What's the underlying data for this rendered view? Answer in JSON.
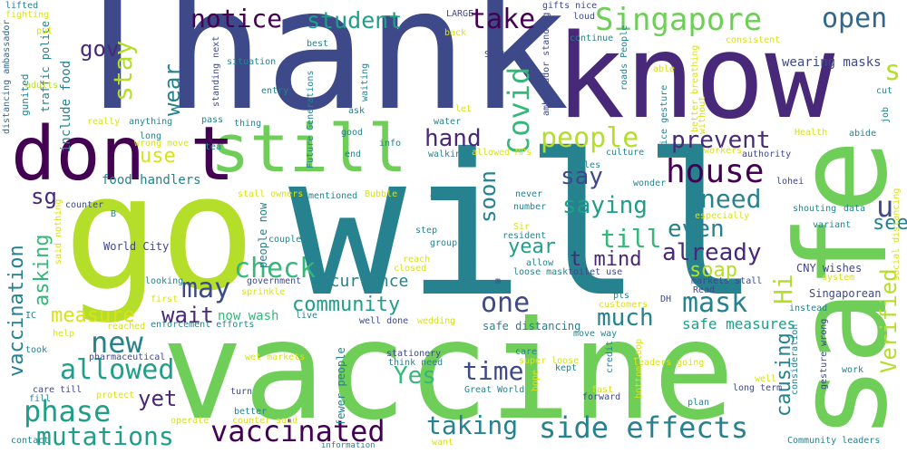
{
  "colors": {
    "navy": "#3e4989",
    "purple": "#440154",
    "deep_purple": "#482878",
    "teal": "#26828e",
    "blue_teal": "#31688e",
    "green_teal": "#1f9e89",
    "green": "#35b779",
    "light_green": "#6ece58",
    "yellow_green": "#b5de2b",
    "yellow": "#d7e219"
  },
  "words": [
    {
      "text": "Thank",
      "color": "navy"
    },
    {
      "text": "know",
      "color": "deep_purple"
    },
    {
      "text": "go",
      "color": "yellow_green"
    },
    {
      "text": "will",
      "color": "teal"
    },
    {
      "text": "vaccine",
      "color": "light_green"
    },
    {
      "text": "safe",
      "color": "light_green"
    },
    {
      "text": "still",
      "color": "light_green"
    },
    {
      "text": "don t",
      "color": "purple"
    },
    {
      "text": "Singapore",
      "color": "light_green"
    },
    {
      "text": "notice",
      "color": "purple"
    },
    {
      "text": "student",
      "color": "green_teal"
    },
    {
      "text": "take",
      "color": "purple"
    },
    {
      "text": "open",
      "color": "blue_teal"
    },
    {
      "text": "gov",
      "color": "deep_purple"
    },
    {
      "text": "stay",
      "color": "yellow_green"
    },
    {
      "text": "wear",
      "color": "teal"
    },
    {
      "text": "wearing masks",
      "color": "navy"
    },
    {
      "text": "s",
      "color": "yellow_green"
    },
    {
      "text": "Covid",
      "color": "green"
    },
    {
      "text": "hand",
      "color": "deep_purple"
    },
    {
      "text": "people",
      "color": "yellow_green"
    },
    {
      "text": "prevent",
      "color": "deep_purple"
    },
    {
      "text": "house",
      "color": "purple"
    },
    {
      "text": "use",
      "color": "yellow"
    },
    {
      "text": "sg",
      "color": "deep_purple"
    },
    {
      "text": "food handlers",
      "color": "teal"
    },
    {
      "text": "recurrence",
      "color": "teal"
    },
    {
      "text": "say",
      "color": "navy"
    },
    {
      "text": "soon",
      "color": "teal"
    },
    {
      "text": "saying",
      "color": "green_teal"
    },
    {
      "text": "need",
      "color": "teal"
    },
    {
      "text": "u",
      "color": "navy"
    },
    {
      "text": "Verified",
      "color": "yellow_green"
    },
    {
      "text": "even",
      "color": "teal"
    },
    {
      "text": "year",
      "color": "green_teal"
    },
    {
      "text": "till",
      "color": "green"
    },
    {
      "text": "t mind",
      "color": "deep_purple"
    },
    {
      "text": "already",
      "color": "deep_purple"
    },
    {
      "text": "see",
      "color": "teal"
    },
    {
      "text": "check",
      "color": "green"
    },
    {
      "text": "soap",
      "color": "yellow_green"
    },
    {
      "text": "Hi",
      "color": "yellow_green"
    },
    {
      "text": "vaccination",
      "color": "teal"
    },
    {
      "text": "asking",
      "color": "green"
    },
    {
      "text": "may",
      "color": "navy"
    },
    {
      "text": "community",
      "color": "green_teal"
    },
    {
      "text": "one",
      "color": "navy"
    },
    {
      "text": "mask",
      "color": "teal"
    },
    {
      "text": "measure",
      "color": "yellow"
    },
    {
      "text": "wait",
      "color": "deep_purple"
    },
    {
      "text": "much",
      "color": "teal"
    },
    {
      "text": "new",
      "color": "teal"
    },
    {
      "text": "now wash",
      "color": "green"
    },
    {
      "text": "safe measures",
      "color": "green_teal"
    },
    {
      "text": "allowed",
      "color": "green_teal"
    },
    {
      "text": "time",
      "color": "navy"
    },
    {
      "text": "causing",
      "color": "teal"
    },
    {
      "text": "phase",
      "color": "green_teal"
    },
    {
      "text": "Yes",
      "color": "green"
    },
    {
      "text": "yet",
      "color": "deep_purple"
    },
    {
      "text": "mutations",
      "color": "green_teal"
    },
    {
      "text": "vaccinated",
      "color": "purple"
    },
    {
      "text": "taking",
      "color": "teal"
    },
    {
      "text": "side effects",
      "color": "teal"
    },
    {
      "text": "include food",
      "color": "teal"
    },
    {
      "text": "traffic police",
      "color": "teal"
    },
    {
      "text": "gunited",
      "color": "teal"
    },
    {
      "text": "fighting",
      "color": "yellow"
    },
    {
      "text": "lifted",
      "color": "teal"
    },
    {
      "text": "distancing ambassador",
      "color": "blue_teal"
    },
    {
      "text": "adults",
      "color": "yellow_green"
    },
    {
      "text": "put",
      "color": "yellow"
    },
    {
      "text": "LARGE",
      "color": "navy"
    },
    {
      "text": "gifts nice",
      "color": "navy"
    },
    {
      "text": "loud",
      "color": "navy"
    },
    {
      "text": "continue",
      "color": "teal"
    },
    {
      "text": "roads People",
      "color": "teal"
    },
    {
      "text": "consistent",
      "color": "yellow"
    },
    {
      "text": "Community leaders",
      "color": "teal"
    },
    {
      "text": "back",
      "color": "yellow"
    },
    {
      "text": "best",
      "color": "teal"
    },
    {
      "text": "South",
      "color": "navy"
    },
    {
      "text": "situation",
      "color": "teal"
    },
    {
      "text": "standing next",
      "color": "navy"
    },
    {
      "text": "entry",
      "color": "teal"
    },
    {
      "text": "waiting",
      "color": "teal"
    },
    {
      "text": "Future Generations",
      "color": "teal"
    },
    {
      "text": "ambassador standing",
      "color": "navy"
    },
    {
      "text": "able",
      "color": "yellow"
    },
    {
      "text": "better breathing",
      "color": "yellow"
    },
    {
      "text": "cut",
      "color": "teal"
    },
    {
      "text": "job",
      "color": "teal"
    },
    {
      "text": "nice gesture",
      "color": "teal"
    },
    {
      "text": "without",
      "color": "yellow"
    },
    {
      "text": "really",
      "color": "yellow"
    },
    {
      "text": "anything",
      "color": "teal"
    },
    {
      "text": "pass",
      "color": "teal"
    },
    {
      "text": "thing",
      "color": "teal"
    },
    {
      "text": "ask",
      "color": "teal"
    },
    {
      "text": "let",
      "color": "yellow"
    },
    {
      "text": "water",
      "color": "teal"
    },
    {
      "text": "long",
      "color": "teal"
    },
    {
      "text": "wrong move",
      "color": "yellow"
    },
    {
      "text": "tea",
      "color": "teal"
    },
    {
      "text": "good",
      "color": "teal"
    },
    {
      "text": "info",
      "color": "teal"
    },
    {
      "text": "Health",
      "color": "yellow"
    },
    {
      "text": "abide",
      "color": "teal"
    },
    {
      "text": "authority",
      "color": "navy"
    },
    {
      "text": "workers",
      "color": "yellow"
    },
    {
      "text": "culture",
      "color": "teal"
    },
    {
      "text": "allowed MPs",
      "color": "yellow"
    },
    {
      "text": "walking",
      "color": "teal"
    },
    {
      "text": "end",
      "color": "teal"
    },
    {
      "text": "rules",
      "color": "teal"
    },
    {
      "text": "counter",
      "color": "navy"
    },
    {
      "text": "B",
      "color": "teal"
    },
    {
      "text": "World City",
      "color": "navy"
    },
    {
      "text": "stall owners",
      "color": "yellow"
    },
    {
      "text": "mentioned",
      "color": "teal"
    },
    {
      "text": "Bubble",
      "color": "yellow"
    },
    {
      "text": "outlet",
      "color": "teal"
    },
    {
      "text": "never",
      "color": "teal"
    },
    {
      "text": "number",
      "color": "teal"
    },
    {
      "text": "wonder",
      "color": "teal"
    },
    {
      "text": "lohei",
      "color": "navy"
    },
    {
      "text": "shouting",
      "color": "teal"
    },
    {
      "text": "data",
      "color": "teal"
    },
    {
      "text": "social distancing",
      "color": "yellow"
    },
    {
      "text": "especially",
      "color": "yellow"
    },
    {
      "text": "variant",
      "color": "teal"
    },
    {
      "text": "public toilet",
      "color": "teal"
    },
    {
      "text": "Sir",
      "color": "yellow"
    },
    {
      "text": "resident",
      "color": "teal"
    },
    {
      "text": "step",
      "color": "teal"
    },
    {
      "text": "couple",
      "color": "teal"
    },
    {
      "text": "group",
      "color": "teal"
    },
    {
      "text": "reach",
      "color": "yellow"
    },
    {
      "text": "closed",
      "color": "yellow"
    },
    {
      "text": "allow",
      "color": "teal"
    },
    {
      "text": "loose mask",
      "color": "teal"
    },
    {
      "text": "m",
      "color": "navy"
    },
    {
      "text": "toilet use",
      "color": "navy"
    },
    {
      "text": "CNY wishes",
      "color": "navy"
    },
    {
      "text": "system",
      "color": "yellow"
    },
    {
      "text": "people now",
      "color": "teal"
    },
    {
      "text": "government",
      "color": "navy"
    },
    {
      "text": "said nothing",
      "color": "yellow"
    },
    {
      "text": "looking",
      "color": "teal"
    },
    {
      "text": "sprinkle",
      "color": "yellow"
    },
    {
      "text": "first",
      "color": "yellow"
    },
    {
      "text": "markets stall",
      "color": "navy"
    },
    {
      "text": "Singaporean",
      "color": "navy"
    },
    {
      "text": "IC",
      "color": "teal"
    },
    {
      "text": "live",
      "color": "teal"
    },
    {
      "text": "pls",
      "color": "teal"
    },
    {
      "text": "DH",
      "color": "navy"
    },
    {
      "text": "customers",
      "color": "yellow"
    },
    {
      "text": "reached",
      "color": "yellow"
    },
    {
      "text": "enforcement efforts",
      "color": "teal"
    },
    {
      "text": "instead",
      "color": "teal"
    },
    {
      "text": "well done",
      "color": "navy"
    },
    {
      "text": "wedding",
      "color": "yellow"
    },
    {
      "text": "safe distancing",
      "color": "teal"
    },
    {
      "text": "help",
      "color": "yellow"
    },
    {
      "text": "move way",
      "color": "teal"
    },
    {
      "text": "took",
      "color": "teal"
    },
    {
      "text": "pharmaceutical",
      "color": "navy"
    },
    {
      "text": "wet markets",
      "color": "yellow"
    },
    {
      "text": "stationery",
      "color": "navy"
    },
    {
      "text": "care",
      "color": "teal"
    },
    {
      "text": "gesture wrong",
      "color": "navy"
    },
    {
      "text": "consideration",
      "color": "teal"
    },
    {
      "text": "work",
      "color": "teal"
    },
    {
      "text": "think need",
      "color": "teal"
    },
    {
      "text": "super loose",
      "color": "yellow"
    },
    {
      "text": "kept",
      "color": "teal"
    },
    {
      "text": "hope",
      "color": "yellow"
    },
    {
      "text": "credit",
      "color": "teal"
    },
    {
      "text": "Great World",
      "color": "teal"
    },
    {
      "text": "well",
      "color": "yellow"
    },
    {
      "text": "long term",
      "color": "navy"
    },
    {
      "text": "care till",
      "color": "navy"
    },
    {
      "text": "protect",
      "color": "yellow"
    },
    {
      "text": "fill",
      "color": "teal"
    },
    {
      "text": "turn",
      "color": "navy"
    },
    {
      "text": "better",
      "color": "teal"
    },
    {
      "text": "counter said",
      "color": "yellow"
    },
    {
      "text": "operate",
      "color": "yellow"
    },
    {
      "text": "fewer people",
      "color": "teal"
    },
    {
      "text": "fast",
      "color": "yellow"
    },
    {
      "text": "forward",
      "color": "navy"
    },
    {
      "text": "bottom loop",
      "color": "yellow"
    },
    {
      "text": "leaders going",
      "color": "yellow"
    },
    {
      "text": "plan",
      "color": "teal"
    },
    {
      "text": "Read",
      "color": "navy"
    },
    {
      "text": "contact",
      "color": "teal"
    },
    {
      "text": "want",
      "color": "yellow"
    },
    {
      "text": "information",
      "color": "teal"
    }
  ]
}
